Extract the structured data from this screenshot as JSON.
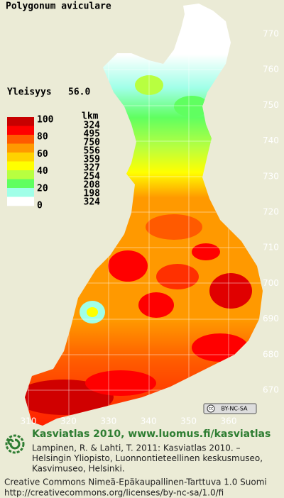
{
  "title": "Polygonum aviculare",
  "frequency": {
    "label": "Yleisyys",
    "value": "56.0"
  },
  "legend": {
    "percent_labels": [
      "100",
      "80",
      "60",
      "40",
      "20",
      "0"
    ],
    "count_header": "lkm",
    "counts": [
      "324",
      "495",
      "750",
      "556",
      "359",
      "327",
      "254",
      "208",
      "198",
      "324"
    ],
    "colors": [
      "#c80000",
      "#ff0000",
      "#ff5a00",
      "#ff9900",
      "#ffd200",
      "#ffff00",
      "#b8ff40",
      "#60ff60",
      "#a0ffe8",
      "#ffffff"
    ]
  },
  "axes": {
    "y_labels": [
      "770",
      "760",
      "750",
      "740",
      "730",
      "720",
      "710",
      "700",
      "690",
      "680",
      "670"
    ],
    "x_labels": [
      "310",
      "320",
      "330",
      "340",
      "350",
      "360"
    ]
  },
  "license_badge": "BY-NC-SA",
  "credits": {
    "headline": "Kasviatlas 2010, www.luomus.fi/kasviatlas",
    "citation": [
      "Lampinen, R. & Lahti, T. 2011: Kasviatlas 2010. –",
      "Helsingin Yliopisto, Luonnontieteellinen keskusmuseo,",
      "Kasvimuseo, Helsinki."
    ],
    "license": "Creative Commons Nimeä-Epäkaupallinen-Tarttuva 1.0 Suomi",
    "url": "http://creativecommons.org/licenses/by-nc-sa/1.0/fi"
  }
}
